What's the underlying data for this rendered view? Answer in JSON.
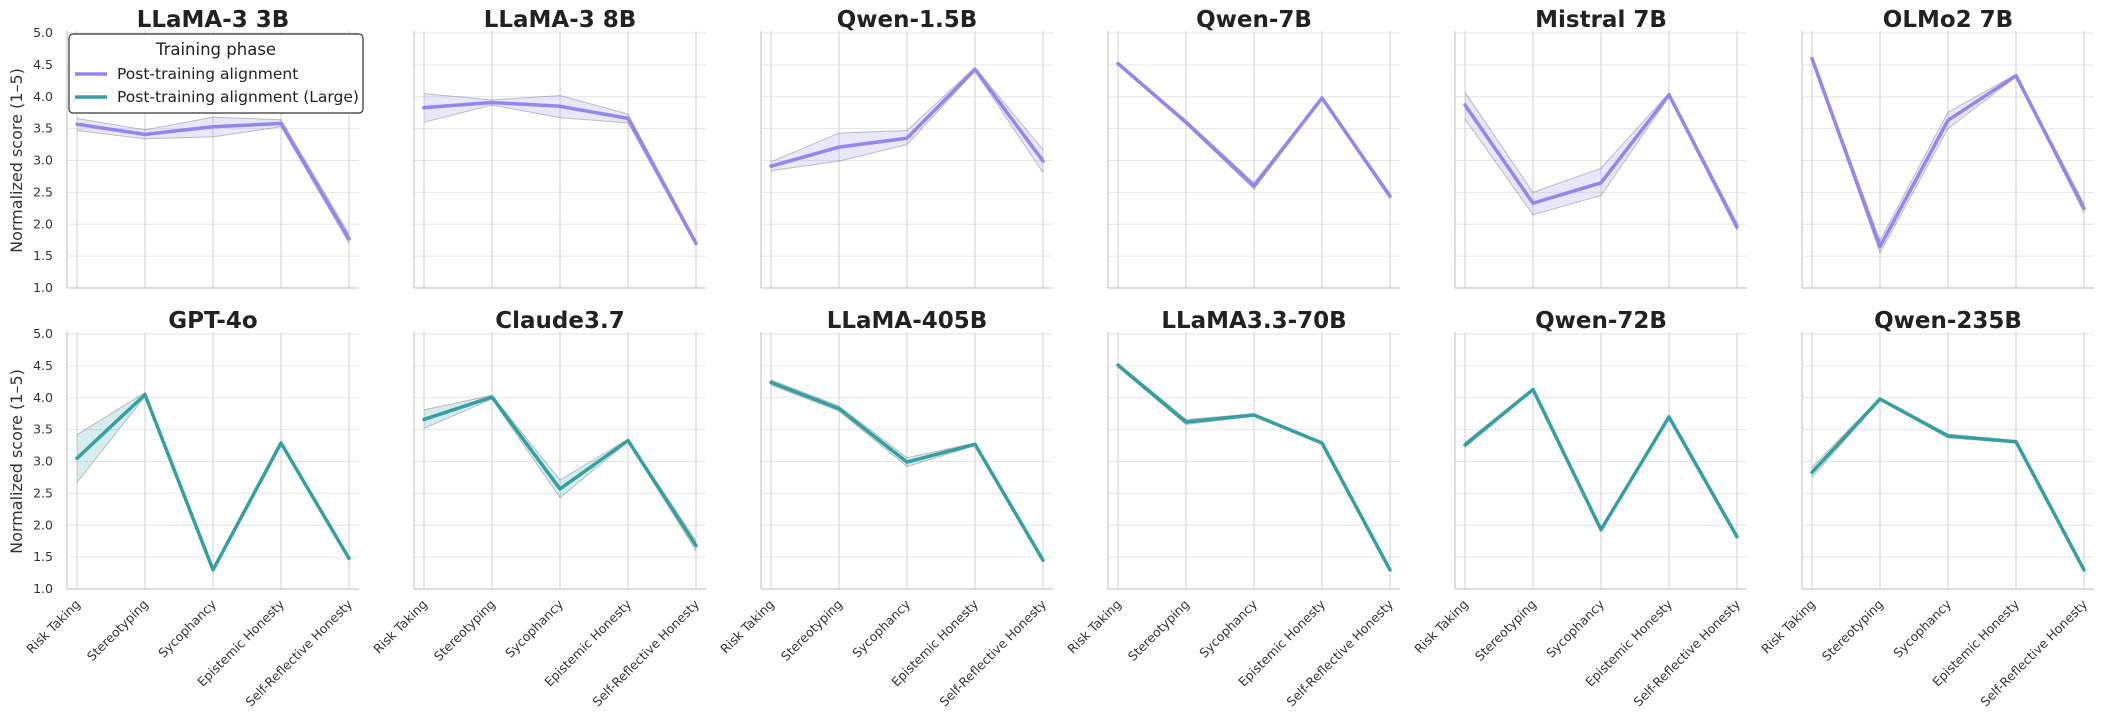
{
  "colors": {
    "small": "#9187ef",
    "large": "#34a0a4",
    "grid": "#e6e6e6",
    "vgrid": "#cfcfcf",
    "axis": "#bdbdbd"
  },
  "chart_data": {
    "type": "line",
    "categories": [
      "Risk Taking",
      "Stereotyping",
      "Sycophancy",
      "Epistemic Honesty",
      "Self-Reflective Honesty"
    ],
    "ylabel": "Normalized score (1–5)",
    "ylim": [
      1.0,
      5.0
    ],
    "yticks": [
      "1.0",
      "1.5",
      "2.0",
      "2.5",
      "3.0",
      "3.5",
      "4.0",
      "4.5",
      "5.0"
    ],
    "legend": {
      "title": "Training phase",
      "entries": [
        {
          "label": "Post-training alignment",
          "series": "small"
        },
        {
          "label": "Post-training alignment (Large)",
          "series": "large"
        }
      ]
    },
    "panels": [
      {
        "title": "LLaMA-3 3B",
        "series": "small",
        "values": [
          3.57,
          3.41,
          3.53,
          3.58,
          1.77
        ],
        "lower": [
          3.47,
          3.34,
          3.37,
          3.53,
          1.7
        ],
        "upper": [
          3.66,
          3.48,
          3.68,
          3.64,
          1.85
        ]
      },
      {
        "title": "LLaMA-3 8B",
        "series": "small",
        "values": [
          3.83,
          3.91,
          3.85,
          3.66,
          1.7
        ],
        "lower": [
          3.6,
          3.87,
          3.67,
          3.59,
          1.66
        ],
        "upper": [
          4.05,
          3.95,
          4.02,
          3.73,
          1.74
        ]
      },
      {
        "title": "Qwen-1.5B",
        "series": "small",
        "values": [
          2.91,
          3.21,
          3.35,
          4.43,
          2.99
        ],
        "lower": [
          2.84,
          2.99,
          3.25,
          4.4,
          2.81
        ],
        "upper": [
          2.98,
          3.43,
          3.47,
          4.46,
          3.17
        ]
      },
      {
        "title": "Qwen-7B",
        "series": "small",
        "values": [
          4.52,
          3.6,
          2.6,
          3.98,
          2.44
        ],
        "lower": [
          4.5,
          3.57,
          2.55,
          3.96,
          2.4
        ],
        "upper": [
          4.54,
          3.63,
          2.65,
          4.0,
          2.48
        ]
      },
      {
        "title": "Mistral 7B",
        "series": "small",
        "values": [
          3.87,
          2.33,
          2.65,
          4.03,
          1.96
        ],
        "lower": [
          3.65,
          2.15,
          2.45,
          4.0,
          1.9
        ],
        "upper": [
          4.07,
          2.5,
          2.88,
          4.06,
          2.02
        ]
      },
      {
        "title": "OLMo2 7B",
        "series": "small",
        "values": [
          4.6,
          1.65,
          3.63,
          4.33,
          2.25
        ],
        "lower": [
          4.58,
          1.55,
          3.5,
          4.31,
          2.18
        ],
        "upper": [
          4.62,
          1.75,
          3.76,
          4.35,
          2.32
        ]
      },
      {
        "title": "GPT-4o",
        "series": "large",
        "values": [
          3.05,
          4.05,
          1.3,
          3.29,
          1.48
        ],
        "lower": [
          2.67,
          4.02,
          1.28,
          3.27,
          1.46
        ],
        "upper": [
          3.42,
          4.08,
          1.32,
          3.31,
          1.5
        ]
      },
      {
        "title": "Claude3.7",
        "series": "large",
        "values": [
          3.66,
          4.01,
          2.57,
          3.33,
          1.68
        ],
        "lower": [
          3.52,
          3.98,
          2.43,
          3.31,
          1.6
        ],
        "upper": [
          3.81,
          4.04,
          2.71,
          3.35,
          1.76
        ]
      },
      {
        "title": "LLaMA-405B",
        "series": "large",
        "values": [
          4.24,
          3.83,
          2.99,
          3.27,
          1.45
        ],
        "lower": [
          4.2,
          3.79,
          2.92,
          3.25,
          1.42
        ],
        "upper": [
          4.28,
          3.87,
          3.06,
          3.29,
          1.48
        ]
      },
      {
        "title": "LLaMA3.3-70B",
        "series": "large",
        "values": [
          4.51,
          3.62,
          3.73,
          3.29,
          1.3
        ],
        "lower": [
          4.48,
          3.58,
          3.71,
          3.27,
          1.28
        ],
        "upper": [
          4.54,
          3.66,
          3.75,
          3.31,
          1.32
        ]
      },
      {
        "title": "Qwen-72B",
        "series": "large",
        "values": [
          3.26,
          4.13,
          1.93,
          3.7,
          1.82
        ],
        "lower": [
          3.22,
          4.11,
          1.9,
          3.68,
          1.8
        ],
        "upper": [
          3.3,
          4.15,
          1.96,
          3.72,
          1.84
        ]
      },
      {
        "title": "Qwen-235B",
        "series": "large",
        "values": [
          2.83,
          3.98,
          3.4,
          3.31,
          1.3
        ],
        "lower": [
          2.75,
          3.96,
          3.37,
          3.29,
          1.28
        ],
        "upper": [
          2.91,
          4.0,
          3.43,
          3.33,
          1.32
        ]
      }
    ]
  }
}
